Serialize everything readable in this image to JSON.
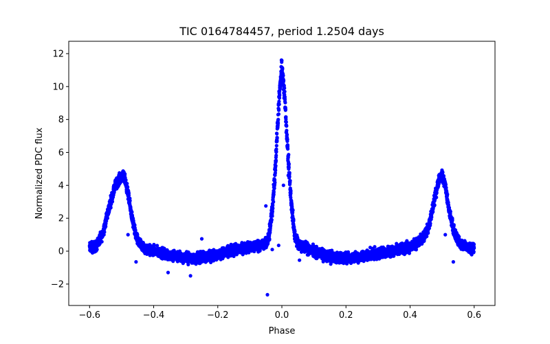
{
  "chart_data": {
    "type": "scatter",
    "title": "TIC 0164784457, period 1.2504 days",
    "xlabel": "Phase",
    "ylabel": "Normalized PDC flux",
    "xlim": [
      -0.665,
      0.665
    ],
    "ylim": [
      -3.3,
      12.75
    ],
    "xticks": [
      -0.6,
      -0.4,
      -0.2,
      0.0,
      0.2,
      0.4,
      0.6
    ],
    "xtick_labels": [
      "−0.6",
      "−0.4",
      "−0.2",
      "0.0",
      "0.2",
      "0.4",
      "0.6"
    ],
    "yticks": [
      -2,
      0,
      2,
      4,
      6,
      8,
      10,
      12
    ],
    "ytick_labels": [
      "−2",
      "0",
      "2",
      "4",
      "6",
      "8",
      "10",
      "12"
    ],
    "grid": false,
    "marker_color": "#0000ff",
    "series": [
      {
        "profile": {
          "x": [
            -0.6,
            -0.58,
            -0.56,
            -0.54,
            -0.52,
            -0.5,
            -0.49,
            -0.48,
            -0.47,
            -0.46,
            -0.45,
            -0.43,
            -0.4,
            -0.35,
            -0.3,
            -0.27,
            -0.2,
            -0.15,
            -0.1,
            -0.05,
            -0.04,
            -0.03,
            -0.02,
            -0.01,
            0.0,
            0.01,
            0.02,
            0.03,
            0.04,
            0.05,
            0.06,
            0.1,
            0.15,
            0.2,
            0.25,
            0.3,
            0.35,
            0.4,
            0.44,
            0.46,
            0.47,
            0.48,
            0.49,
            0.5,
            0.51,
            0.52,
            0.54,
            0.56,
            0.58,
            0.6
          ],
          "y": [
            0.2,
            0.3,
            1.0,
            2.6,
            4.0,
            4.6,
            4.4,
            3.5,
            2.3,
            1.3,
            0.6,
            0.15,
            0.0,
            -0.25,
            -0.4,
            -0.45,
            -0.2,
            0.05,
            0.25,
            0.45,
            0.9,
            2.5,
            5.2,
            8.8,
            11.3,
            9.0,
            5.5,
            2.7,
            1.0,
            0.5,
            0.3,
            0.0,
            -0.35,
            -0.45,
            -0.3,
            -0.15,
            0.05,
            0.25,
            0.7,
            1.6,
            2.5,
            3.5,
            4.4,
            4.6,
            4.0,
            2.6,
            1.0,
            0.4,
            0.25,
            0.2
          ]
        },
        "outliers": [
          {
            "x": -0.045,
            "y": -2.65
          },
          {
            "x": -0.285,
            "y": -1.5
          },
          {
            "x": -0.355,
            "y": -1.3
          },
          {
            "x": 0.005,
            "y": 4.0
          },
          {
            "x": 0.02,
            "y": 4.6
          },
          {
            "x": -0.48,
            "y": 1.0
          },
          {
            "x": 0.51,
            "y": 1.0
          },
          {
            "x": -0.455,
            "y": -0.65
          },
          {
            "x": 0.535,
            "y": -0.65
          },
          {
            "x": -0.25,
            "y": 0.75
          },
          {
            "x": -0.01,
            "y": 0.35
          },
          {
            "x": -0.05,
            "y": 2.75
          },
          {
            "x": -0.03,
            "y": 0.1
          },
          {
            "x": 0.055,
            "y": -0.55
          }
        ]
      }
    ]
  }
}
